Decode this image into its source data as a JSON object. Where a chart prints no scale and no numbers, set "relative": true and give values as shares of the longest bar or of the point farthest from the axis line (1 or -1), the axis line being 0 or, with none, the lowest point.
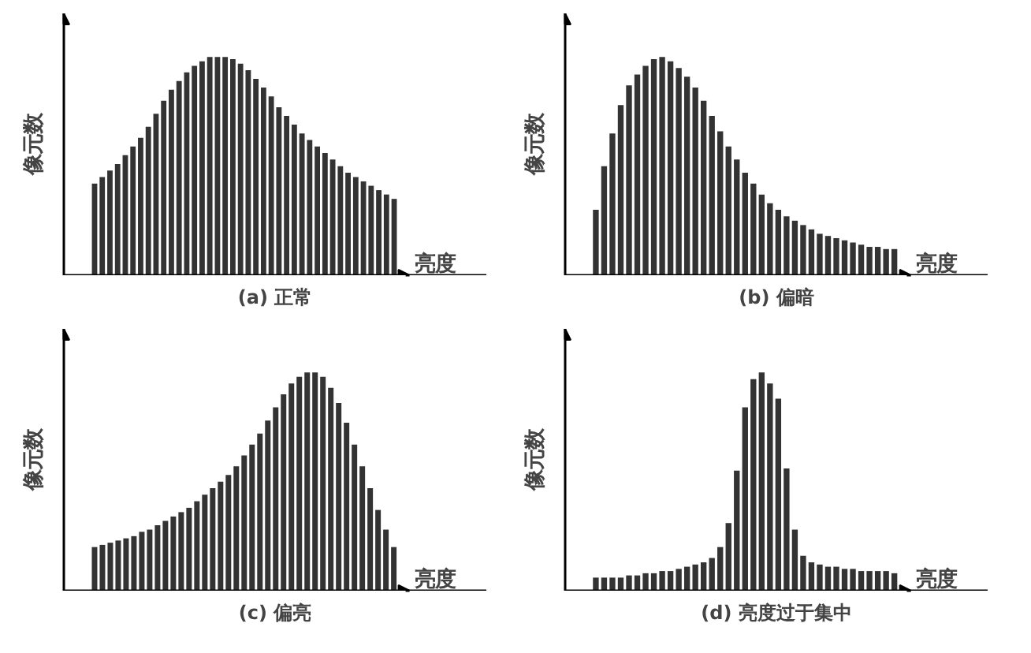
{
  "chart_data": [
    {
      "type": "bar",
      "relative": true,
      "title": "(a) 正常",
      "xlabel": "亮度",
      "ylabel": "像元数",
      "color": "#333333",
      "categories": [
        null,
        null,
        null,
        null,
        null,
        null,
        null,
        null,
        null,
        null,
        null,
        null,
        null,
        null,
        null,
        null,
        null,
        null,
        null,
        null,
        null,
        null,
        null,
        null,
        null,
        null,
        null,
        null,
        null,
        null,
        null,
        null,
        null,
        null,
        null,
        null,
        null,
        null,
        null,
        null
      ],
      "values": [
        0.42,
        0.45,
        0.48,
        0.51,
        0.55,
        0.59,
        0.63,
        0.68,
        0.74,
        0.8,
        0.85,
        0.89,
        0.93,
        0.96,
        0.98,
        1.0,
        1.0,
        1.0,
        0.99,
        0.97,
        0.94,
        0.9,
        0.86,
        0.82,
        0.77,
        0.73,
        0.69,
        0.65,
        0.62,
        0.59,
        0.56,
        0.53,
        0.5,
        0.47,
        0.45,
        0.43,
        0.41,
        0.39,
        0.37,
        0.35
      ]
    },
    {
      "type": "bar",
      "relative": true,
      "title": "(b) 偏暗",
      "xlabel": "亮度",
      "ylabel": "像元数",
      "color": "#333333",
      "categories": [
        null,
        null,
        null,
        null,
        null,
        null,
        null,
        null,
        null,
        null,
        null,
        null,
        null,
        null,
        null,
        null,
        null,
        null,
        null,
        null,
        null,
        null,
        null,
        null,
        null,
        null,
        null,
        null,
        null,
        null,
        null,
        null,
        null,
        null,
        null,
        null,
        null
      ],
      "values": [
        0.3,
        0.5,
        0.65,
        0.78,
        0.87,
        0.92,
        0.96,
        0.99,
        1.0,
        0.98,
        0.95,
        0.91,
        0.86,
        0.8,
        0.73,
        0.66,
        0.59,
        0.53,
        0.47,
        0.42,
        0.37,
        0.33,
        0.3,
        0.27,
        0.25,
        0.23,
        0.21,
        0.19,
        0.18,
        0.17,
        0.16,
        0.15,
        0.14,
        0.13,
        0.13,
        0.12,
        0.12
      ]
    },
    {
      "type": "bar",
      "relative": true,
      "title": "(c) 偏亮",
      "xlabel": "亮度",
      "ylabel": "像元数",
      "color": "#333333",
      "categories": [
        null,
        null,
        null,
        null,
        null,
        null,
        null,
        null,
        null,
        null,
        null,
        null,
        null,
        null,
        null,
        null,
        null,
        null,
        null,
        null,
        null,
        null,
        null,
        null,
        null,
        null,
        null,
        null,
        null,
        null,
        null,
        null,
        null,
        null,
        null,
        null,
        null,
        null,
        null
      ],
      "values": [
        0.2,
        0.21,
        0.22,
        0.23,
        0.24,
        0.25,
        0.27,
        0.28,
        0.3,
        0.32,
        0.34,
        0.36,
        0.38,
        0.41,
        0.44,
        0.47,
        0.5,
        0.53,
        0.57,
        0.62,
        0.67,
        0.72,
        0.78,
        0.84,
        0.9,
        0.95,
        0.98,
        1.0,
        1.0,
        0.98,
        0.93,
        0.86,
        0.77,
        0.67,
        0.57,
        0.47,
        0.37,
        0.28,
        0.2
      ]
    },
    {
      "type": "bar",
      "relative": true,
      "title": "(d) 亮度过于集中",
      "xlabel": "亮度",
      "ylabel": "像元数",
      "color": "#333333",
      "categories": [
        null,
        null,
        null,
        null,
        null,
        null,
        null,
        null,
        null,
        null,
        null,
        null,
        null,
        null,
        null,
        null,
        null,
        null,
        null,
        null,
        null,
        null,
        null,
        null,
        null,
        null,
        null,
        null,
        null,
        null,
        null,
        null,
        null,
        null,
        null,
        null,
        null
      ],
      "values": [
        0.06,
        0.06,
        0.06,
        0.06,
        0.07,
        0.07,
        0.08,
        0.08,
        0.09,
        0.09,
        0.1,
        0.11,
        0.12,
        0.13,
        0.15,
        0.2,
        0.31,
        0.55,
        0.84,
        0.97,
        1.0,
        0.95,
        0.88,
        0.56,
        0.28,
        0.16,
        0.13,
        0.12,
        0.11,
        0.11,
        0.1,
        0.1,
        0.09,
        0.09,
        0.09,
        0.09,
        0.08
      ]
    }
  ]
}
